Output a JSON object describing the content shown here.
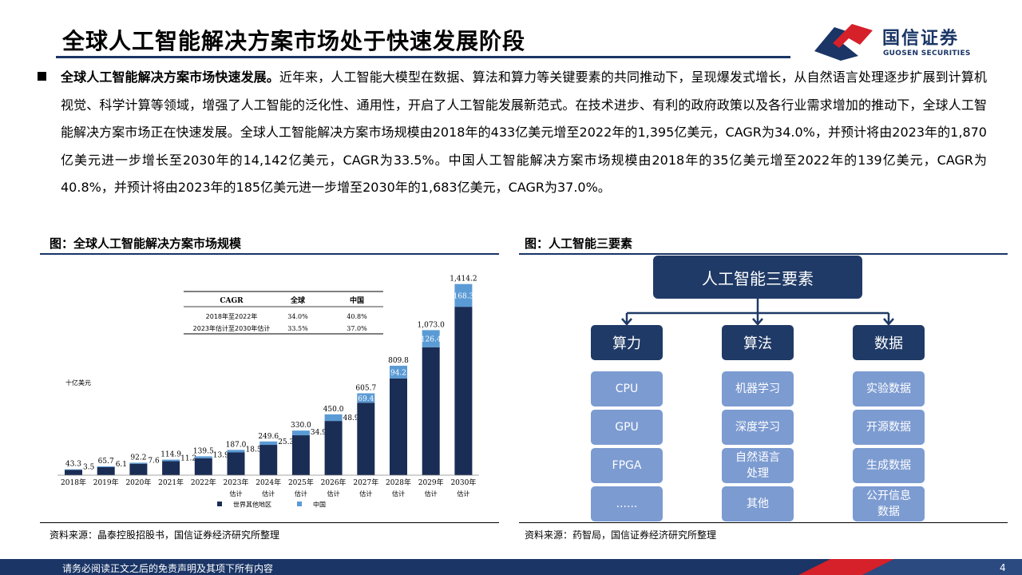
{
  "header": {
    "title": "全球人工智能解决方案市场处于快速发展阶段",
    "logo_cn": "国信证券",
    "logo_en": "GUOSEN SECURITIES"
  },
  "intro": {
    "lead": "全球人工智能解决方案市场快速发展。",
    "body": "近年来，人工智能大模型在数据、算法和算力等关键要素的共同推动下，呈现爆发式增长，从自然语言处理逐步扩展到计算机视觉、科学计算等领域，增强了人工智能的泛化性、通用性，开启了人工智能发展新范式。在技术进步、有利的政府政策以及各行业需求增加的推动下，全球人工智能解决方案市场正在快速发展。全球人工智能解决方案市场规模由2018年的433亿美元增至2022年的1,395亿美元，CAGR为34.0%，并预计将由2023年的1,870亿美元进一步增长至2030年的14,142亿美元，CAGR为33.5%。中国人工智能解决方案市场规模由2018年的35亿美元增至2022年的139亿美元，CAGR为40.8%，并预计将由2023年的185亿美元进一步增至2030年的1,683亿美元，CAGR为37.0%。"
  },
  "figure_left": {
    "title": "图：全球人工智能解决方案市场规模",
    "source": "资料来源：晶泰控股招股书，国信证券经济研究所整理"
  },
  "figure_right": {
    "title": "图：人工智能三要素",
    "source": "资料来源：药智局，国信证券经济研究所整理"
  },
  "chart_data": {
    "type": "bar",
    "ylabel": "十亿美元",
    "categories": [
      "2018年",
      "2019年",
      "2020年",
      "2021年",
      "2022年",
      "2023年",
      "2024年",
      "2025年",
      "2026年",
      "2027年",
      "2028年",
      "2029年",
      "2030年"
    ],
    "category_sublabels": [
      "",
      "",
      "",
      "",
      "",
      "估计",
      "估计",
      "估计",
      "估计",
      "估计",
      "估计",
      "估计",
      "估计"
    ],
    "series": [
      {
        "name": "世界其他地区",
        "color": "#1a2d55",
        "values": [
          39.8,
          59.6,
          84.6,
          103.7,
          125.6,
          168.5,
          224.3,
          295.1,
          401.1,
          536.3,
          715.6,
          946.6,
          1245.9
        ]
      },
      {
        "name": "中国",
        "color": "#5b9bd5",
        "values": [
          3.5,
          6.1,
          7.6,
          11.2,
          13.9,
          18.5,
          25.3,
          34.9,
          48.9,
          69.4,
          94.2,
          126.4,
          168.3
        ]
      }
    ],
    "totals": [
      43.3,
      65.7,
      92.2,
      114.9,
      139.5,
      187.0,
      249.6,
      330.0,
      450.0,
      605.7,
      809.8,
      1073.0,
      1414.2
    ],
    "total_labels": [
      "43.3",
      "65.7",
      "92.2",
      "114.9",
      "139.5",
      "187.0",
      "249.6",
      "330.0",
      "450.0",
      "605.7",
      "809.8",
      "1,073.0",
      "1,414.2"
    ],
    "china_labels": [
      "3.5",
      "6.1",
      "7.6",
      "11.2",
      "13.9",
      "18.5",
      "25.3",
      "34.9",
      "48.9",
      "69.4",
      "94.2",
      "126.4",
      "168.3"
    ],
    "ylim": [
      0,
      1500
    ],
    "cagr_table": {
      "headers": [
        "CAGR",
        "全球",
        "中国"
      ],
      "rows": [
        [
          "2018年至2022年",
          "34.0%",
          "40.8%"
        ],
        [
          "2023年估计至2030年估计",
          "33.5%",
          "37.0%"
        ]
      ]
    }
  },
  "diagram": {
    "root": "人工智能三要素",
    "columns": [
      {
        "label": "算力",
        "items": [
          "CPU",
          "GPU",
          "FPGA",
          "......"
        ]
      },
      {
        "label": "算法",
        "items": [
          "机器学习",
          "深度学习",
          "自然语言处理",
          "其他"
        ]
      },
      {
        "label": "数据",
        "items": [
          "实验数据",
          "开源数据",
          "生成数据",
          "公开信息数据"
        ]
      }
    ]
  },
  "footer": {
    "disclaimer": "请务必阅读正文之后的免责声明及其项下所有内容",
    "page": "4"
  }
}
